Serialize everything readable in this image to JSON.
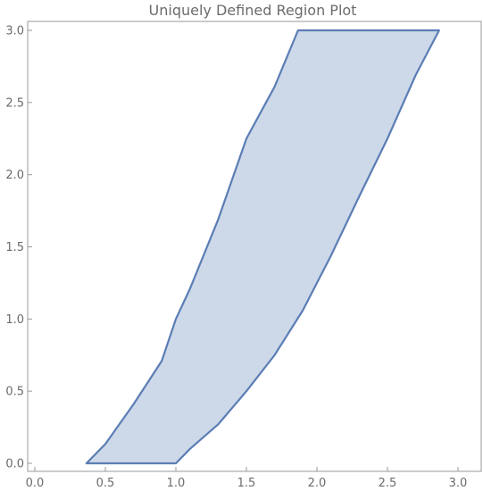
{
  "chart_data": {
    "type": "area",
    "title": "Uniquely Defined Region Plot",
    "xlabel": "",
    "ylabel": "",
    "xlim": [
      0,
      3
    ],
    "ylim": [
      0,
      3
    ],
    "x_ticks": [
      {
        "value": 0.0,
        "label": "0.0"
      },
      {
        "value": 0.5,
        "label": "0.5"
      },
      {
        "value": 1.0,
        "label": "1.0"
      },
      {
        "value": 1.5,
        "label": "1.5"
      },
      {
        "value": 2.0,
        "label": "2.0"
      },
      {
        "value": 2.5,
        "label": "2.5"
      },
      {
        "value": 3.0,
        "label": "3.0"
      }
    ],
    "y_ticks": [
      {
        "value": 0.0,
        "label": "0.0"
      },
      {
        "value": 0.5,
        "label": "0.5"
      },
      {
        "value": 1.0,
        "label": "1.0"
      },
      {
        "value": 1.5,
        "label": "1.5"
      },
      {
        "value": 2.0,
        "label": "2.0"
      },
      {
        "value": 2.5,
        "label": "2.5"
      },
      {
        "value": 3.0,
        "label": "3.0"
      }
    ],
    "grid": false,
    "colors": {
      "fill": "#cdd9e9",
      "stroke": "#5b7db4",
      "frame": "#9a9a9a"
    },
    "series": [
      {
        "boundary": [
          [
            0.366,
            0.0
          ],
          [
            0.5,
            0.134
          ],
          [
            0.7,
            0.41
          ],
          [
            0.9,
            0.71
          ],
          [
            1.0,
            1.0
          ],
          [
            1.1,
            1.21
          ],
          [
            1.3,
            1.69
          ],
          [
            1.5,
            2.25
          ],
          [
            1.7,
            2.61
          ],
          [
            1.866,
            3.0
          ],
          [
            2.0,
            3.0
          ],
          [
            2.5,
            3.0
          ],
          [
            2.866,
            3.0
          ],
          [
            2.7,
            2.69
          ],
          [
            2.5,
            2.25
          ],
          [
            2.3,
            1.85
          ],
          [
            2.1,
            1.44
          ],
          [
            1.9,
            1.06
          ],
          [
            1.7,
            0.75
          ],
          [
            1.5,
            0.5
          ],
          [
            1.3,
            0.27
          ],
          [
            1.1,
            0.1
          ],
          [
            1.0,
            0.0
          ],
          [
            0.8,
            0.0
          ],
          [
            0.6,
            0.0
          ],
          [
            0.366,
            0.0
          ]
        ]
      }
    ]
  }
}
